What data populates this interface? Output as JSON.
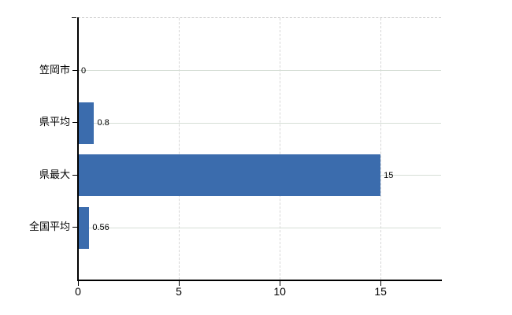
{
  "chart_data": {
    "type": "bar",
    "orientation": "horizontal",
    "title": "",
    "xlabel": "",
    "ylabel": "",
    "categories": [
      "笠岡市",
      "県平均",
      "県最大",
      "全国平均"
    ],
    "values": [
      0,
      0.8,
      15,
      0.56
    ],
    "value_labels": [
      "0",
      "0.8",
      "15",
      "0.56"
    ],
    "xlim": [
      0,
      18
    ],
    "x_ticks": [
      0,
      5,
      10,
      15
    ],
    "x_tick_labels": [
      "0",
      "5",
      "10",
      "15"
    ],
    "grid": {
      "horizontal": true,
      "vertical": true
    },
    "legend": false,
    "colors": {
      "bar": "#3b6cad",
      "axis": "#000000",
      "horizontal_gridline": "#d6ded6",
      "vertical_gridline": "#d6d6d6",
      "plot_top_border": "#c8c8c8",
      "background": "#ffffff",
      "text": "#000000"
    }
  }
}
